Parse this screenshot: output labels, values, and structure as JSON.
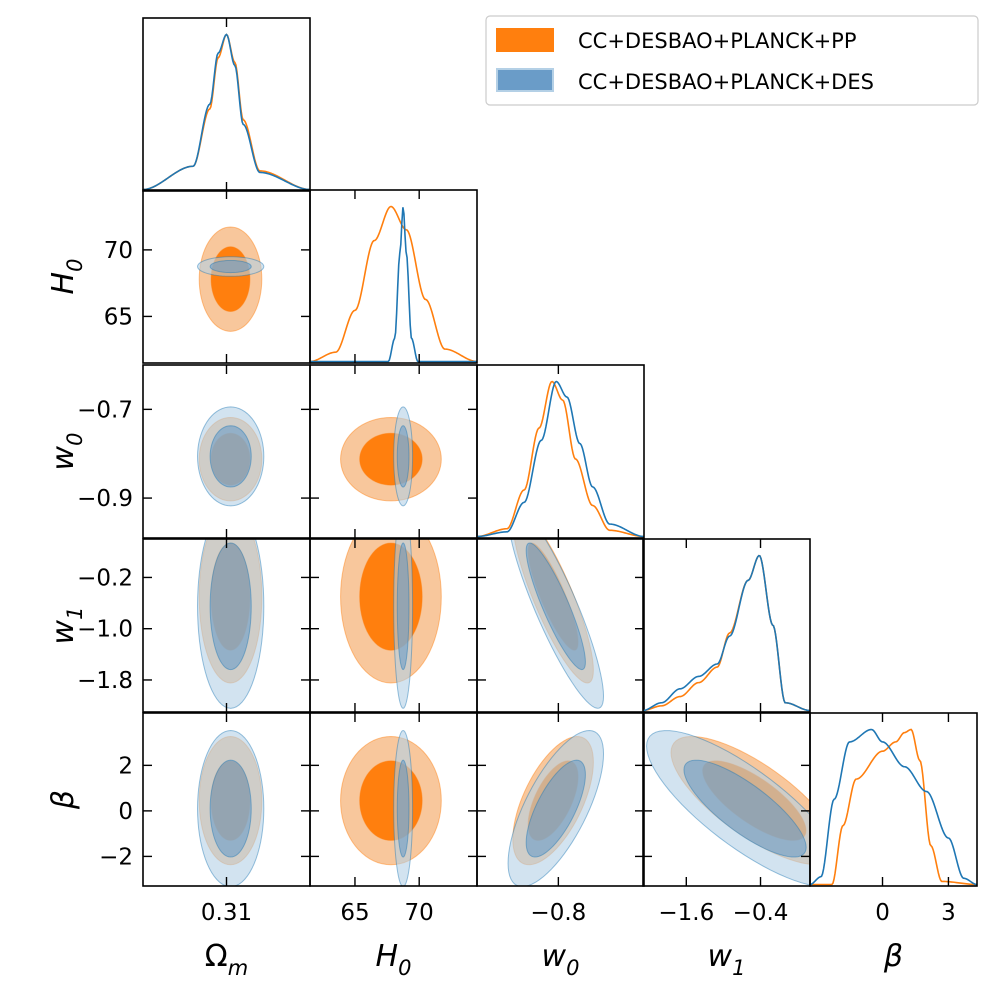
{
  "chart_data": {
    "type": "triangle-corner",
    "parameters": [
      {
        "key": "Om",
        "label_main": "Ω",
        "label_sub": "m",
        "range": [
          0.21,
          0.41
        ],
        "ticks": [
          0.31
        ],
        "tick_labels": [
          "0.31"
        ]
      },
      {
        "key": "H0",
        "label_main": "H",
        "label_sub": "0",
        "range": [
          61.5,
          74.5
        ],
        "ticks": [
          65,
          70
        ],
        "tick_labels": [
          "65",
          "70"
        ]
      },
      {
        "key": "w0",
        "label_main": "w",
        "label_sub": "0",
        "range": [
          -0.99,
          -0.6
        ],
        "ticks": [
          -0.9,
          -0.7
        ],
        "tick_labels": [
          "−0.9",
          "−0.7"
        ]
      },
      {
        "key": "w1",
        "label_main": "w",
        "label_sub": "1",
        "range": [
          -2.3,
          0.4
        ],
        "ticks": [
          -1.8,
          -1.0,
          -0.2
        ],
        "tick_labels": [
          "−1.8",
          "−1.0",
          "−0.2"
        ]
      },
      {
        "key": "beta",
        "label_main": "β",
        "label_sub": "",
        "range": [
          -3.3,
          4.3
        ],
        "ticks": [
          -2,
          0,
          2
        ],
        "tick_labels": [
          "−2",
          "0",
          "2"
        ]
      }
    ],
    "bottom_ticks": [
      {
        "ticks": [
          0.31
        ],
        "tick_labels": [
          "0.31"
        ]
      },
      {
        "ticks": [
          65,
          70
        ],
        "tick_labels": [
          "65",
          "70"
        ]
      },
      {
        "ticks": [
          -0.8
        ],
        "tick_labels": [
          "−0.8"
        ]
      },
      {
        "ticks": [
          -1.6,
          -0.4
        ],
        "tick_labels": [
          "−1.6",
          "−0.4"
        ]
      },
      {
        "ticks": [
          0,
          3
        ],
        "tick_labels": [
          "0",
          "3"
        ]
      }
    ],
    "legend_placement": "top-right",
    "series": [
      {
        "name": "CC+DESBAO+PLANCK+PP",
        "color": "#ff7f0e",
        "fill_outer": "#f7bd8b",
        "fill_inner": "#ff7f0e",
        "means": {
          "Om": 0.3148,
          "H0": 67.8,
          "w0": -0.8123,
          "w1": -0.5,
          "beta": 0.45
        },
        "sigmas": {
          "Om": 0.0153,
          "H0": 1.6,
          "w0": 0.0384,
          "w1": 0.55,
          "beta": 1.15
        },
        "correlations": {
          "w0_w1": -0.85,
          "w0_beta": 0.6,
          "w1_beta": -0.75
        },
        "marginals": {
          "Om": {
            "x": [
              0.21,
              0.27,
              0.29,
              0.3,
              0.31,
              0.32,
              0.33,
              0.35,
              0.41
            ],
            "y": [
              0.0,
              0.15,
              0.52,
              0.85,
              1.0,
              0.82,
              0.45,
              0.12,
              0.0
            ]
          },
          "H0": {
            "x": [
              61.5,
              63.5,
              65.0,
              66.5,
              67.8,
              69.0,
              70.5,
              72.0,
              74.5
            ],
            "y": [
              0.0,
              0.06,
              0.33,
              0.78,
              1.0,
              0.85,
              0.4,
              0.08,
              0.0
            ]
          },
          "w0": {
            "x": [
              -0.99,
              -0.92,
              -0.88,
              -0.845,
              -0.815,
              -0.79,
              -0.76,
              -0.72,
              -0.68,
              -0.6
            ],
            "y": [
              0.0,
              0.05,
              0.3,
              0.7,
              1.0,
              0.88,
              0.5,
              0.2,
              0.04,
              0.0
            ]
          },
          "w1": {
            "x": [
              -2.3,
              -2.0,
              -1.7,
              -1.4,
              -1.1,
              -0.9,
              -0.6,
              -0.42,
              -0.2,
              0.0,
              0.4
            ],
            "y": [
              0.0,
              0.03,
              0.09,
              0.18,
              0.28,
              0.5,
              0.84,
              1.0,
              0.55,
              0.05,
              0.0
            ]
          },
          "beta": {
            "x": [
              -3.3,
              -2.3,
              -1.8,
              -1.2,
              0.0,
              0.6,
              1.0,
              1.3,
              1.7,
              2.2,
              2.7,
              4.3
            ],
            "y": [
              0.0,
              0.0,
              0.38,
              0.68,
              0.86,
              0.92,
              0.98,
              1.0,
              0.8,
              0.25,
              0.02,
              0.0
            ]
          }
        }
      },
      {
        "name": "CC+DESBAO+PLANCK+DES",
        "color": "#1f77b4",
        "fill_outer": "#b4d0e6",
        "fill_inner": "#6a9cc8",
        "means": {
          "Om": 0.315,
          "H0": 68.75,
          "w0": -0.806,
          "w1": -0.65,
          "beta": 0.1
        },
        "sigmas": {
          "Om": 0.0162,
          "H0": 0.3,
          "w0": 0.0455,
          "w1": 0.65,
          "beta": 1.4
        },
        "correlations": {
          "w0_w1": -0.88,
          "w0_beta": 0.7,
          "w1_beta": -0.8
        },
        "marginals": {
          "Om": {
            "x": [
              0.21,
              0.27,
              0.29,
              0.3,
              0.31,
              0.32,
              0.33,
              0.35,
              0.41
            ],
            "y": [
              0.0,
              0.15,
              0.55,
              0.88,
              1.0,
              0.8,
              0.42,
              0.11,
              0.0
            ]
          },
          "H0": {
            "x": [
              61.5,
              67.6,
              68.1,
              68.5,
              68.75,
              69.0,
              69.4,
              69.9,
              74.5
            ],
            "y": [
              0.0,
              0.0,
              0.15,
              0.7,
              1.0,
              0.7,
              0.15,
              0.0,
              0.0
            ]
          },
          "w0": {
            "x": [
              -0.99,
              -0.92,
              -0.88,
              -0.84,
              -0.805,
              -0.78,
              -0.75,
              -0.72,
              -0.68,
              -0.6
            ],
            "y": [
              0.0,
              0.03,
              0.22,
              0.62,
              1.0,
              0.9,
              0.6,
              0.32,
              0.08,
              0.0
            ]
          },
          "w1": {
            "x": [
              -2.3,
              -2.0,
              -1.7,
              -1.4,
              -1.1,
              -0.9,
              -0.6,
              -0.42,
              -0.2,
              0.0,
              0.4
            ],
            "y": [
              0.0,
              0.05,
              0.14,
              0.22,
              0.3,
              0.48,
              0.84,
              1.0,
              0.55,
              0.05,
              0.0
            ]
          },
          "beta": {
            "x": [
              -3.3,
              -2.8,
              -2.2,
              -1.5,
              -0.5,
              0.0,
              1.0,
              2.0,
              3.0,
              3.7,
              4.3
            ],
            "y": [
              0.0,
              0.05,
              0.55,
              0.92,
              1.0,
              0.92,
              0.76,
              0.6,
              0.3,
              0.04,
              0.0
            ]
          }
        }
      }
    ]
  }
}
